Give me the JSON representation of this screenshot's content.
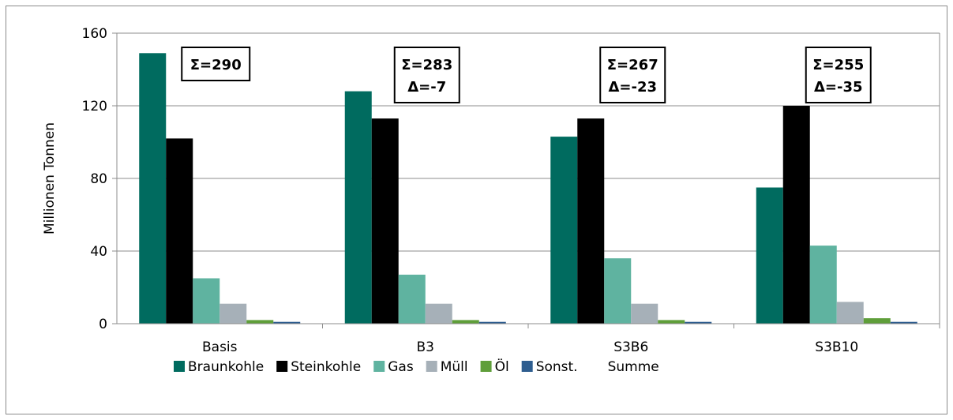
{
  "chart_data": {
    "type": "bar",
    "categories": [
      "Basis",
      "B3",
      "S3B6",
      "S3B10"
    ],
    "ylabel": "Millionen Tonnen",
    "xlabel": "",
    "ylim": [
      0,
      160
    ],
    "yticks": [
      0,
      40,
      80,
      120,
      160
    ],
    "grid": true,
    "legend_position": "bottom",
    "series": [
      {
        "name": "Braunkohle",
        "color": "#006b5f",
        "values": [
          149,
          128,
          103,
          75
        ]
      },
      {
        "name": "Steinkohle",
        "color": "#000000",
        "values": [
          102,
          113,
          113,
          120
        ]
      },
      {
        "name": "Gas",
        "color": "#5fb3a0",
        "values": [
          25,
          27,
          36,
          43
        ]
      },
      {
        "name": "Müll",
        "color": "#a6b0b8",
        "values": [
          11,
          11,
          11,
          12
        ]
      },
      {
        "name": "Öl",
        "color": "#5f9e3a",
        "values": [
          2,
          2,
          2,
          3
        ]
      },
      {
        "name": "Sonst.",
        "color": "#2e5d8f",
        "values": [
          1,
          1,
          1,
          1
        ]
      }
    ],
    "legend_extra": "Summe",
    "annotations": [
      {
        "category": "Basis",
        "lines": [
          "Σ=290"
        ]
      },
      {
        "category": "B3",
        "lines": [
          "Σ=283",
          "Δ=-7"
        ]
      },
      {
        "category": "S3B6",
        "lines": [
          "Σ=267",
          "Δ=-23"
        ]
      },
      {
        "category": "S3B10",
        "lines": [
          "Σ=255",
          "Δ=-35"
        ]
      }
    ]
  }
}
